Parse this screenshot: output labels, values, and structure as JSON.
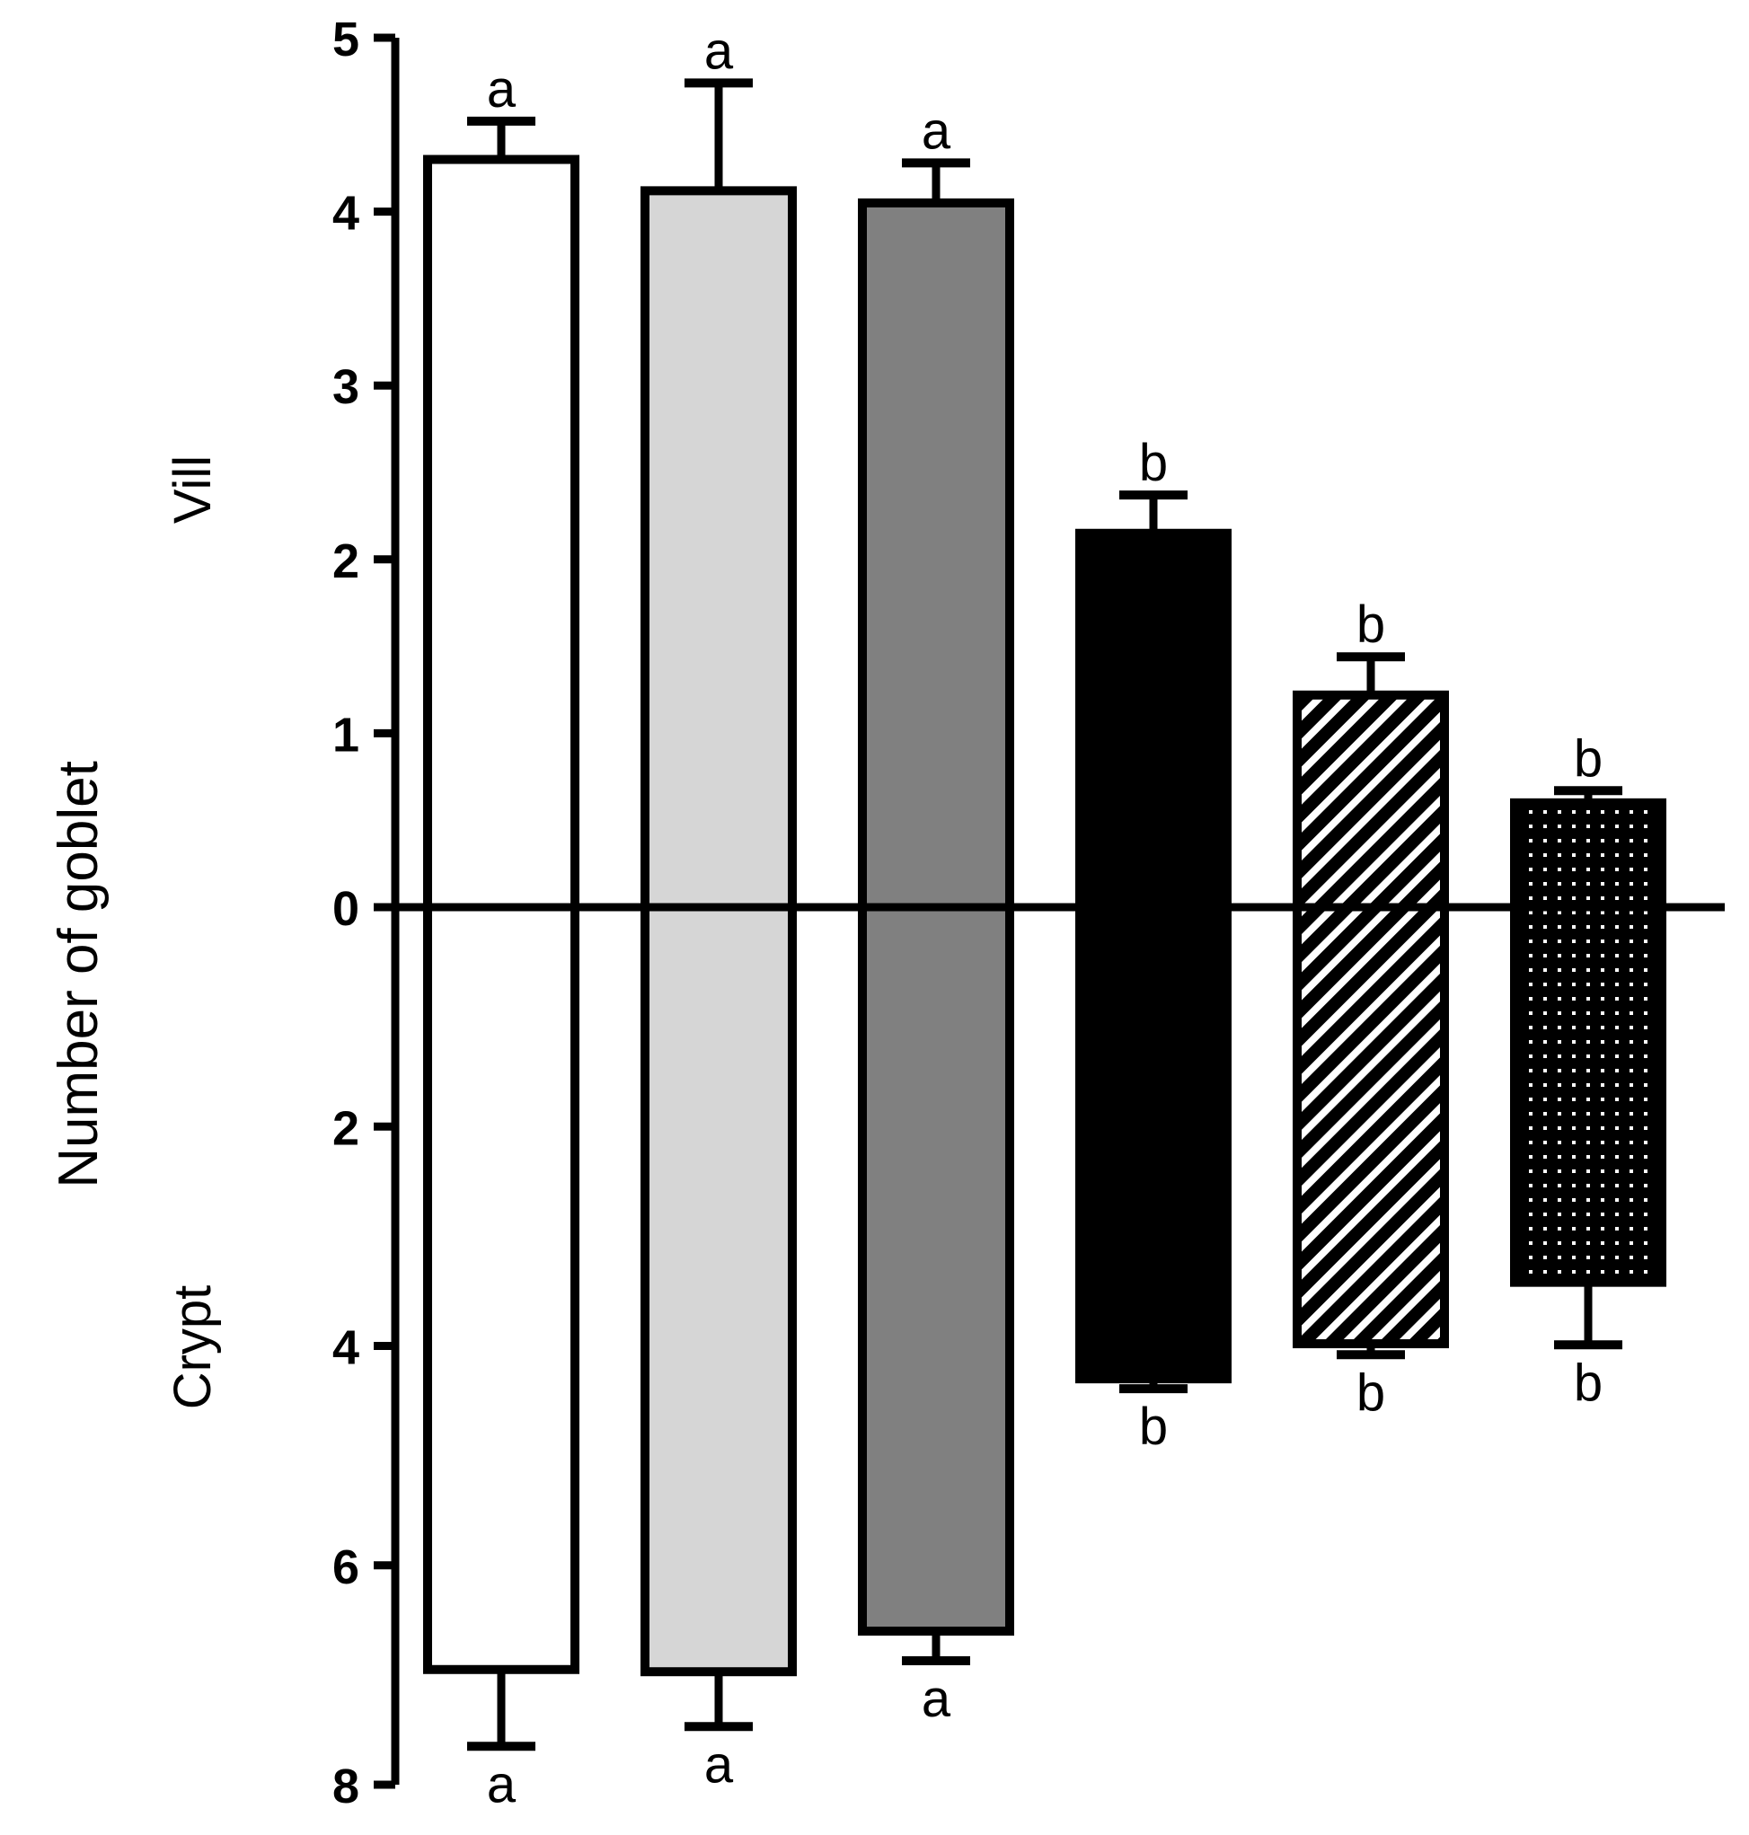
{
  "chart_data": {
    "type": "bar",
    "ylabel": "Number of goblet",
    "upper_region_label": "Vill",
    "lower_region_label": "Crypt",
    "upper_axis": {
      "ylim": [
        0,
        5
      ],
      "ticks": [
        "0",
        "1",
        "2",
        "3",
        "4",
        "5"
      ]
    },
    "lower_axis": {
      "ylim": [
        0,
        8
      ],
      "ticks": [
        "2",
        "4",
        "6",
        "8"
      ]
    },
    "bars": [
      {
        "fill": "#ffffff",
        "pattern": "none",
        "vill": 4.3,
        "vill_err": 0.22,
        "vill_sig": "a",
        "crypt": 6.95,
        "crypt_err": 0.7,
        "crypt_sig": "a"
      },
      {
        "fill": "#d6d6d6",
        "pattern": "none",
        "vill": 4.12,
        "vill_err": 0.62,
        "vill_sig": "a",
        "crypt": 6.97,
        "crypt_err": 0.5,
        "crypt_sig": "a"
      },
      {
        "fill": "#808080",
        "pattern": "none",
        "vill": 4.05,
        "vill_err": 0.23,
        "vill_sig": "a",
        "crypt": 6.6,
        "crypt_err": 0.27,
        "crypt_sig": "a"
      },
      {
        "fill": "#000000",
        "pattern": "none",
        "vill": 2.15,
        "vill_err": 0.22,
        "vill_sig": "b",
        "crypt": 4.3,
        "crypt_err": 0.09,
        "crypt_sig": "b"
      },
      {
        "fill": "#000000",
        "pattern": "hatch",
        "vill": 1.22,
        "vill_err": 0.22,
        "vill_sig": "b",
        "crypt": 3.98,
        "crypt_err": 0.1,
        "crypt_sig": "b"
      },
      {
        "fill": "#000000",
        "pattern": "dots",
        "vill": 0.6,
        "vill_err": 0.07,
        "vill_sig": "b",
        "crypt": 3.42,
        "crypt_err": 0.57,
        "crypt_sig": "b"
      }
    ],
    "grid": false,
    "legend": "none"
  }
}
